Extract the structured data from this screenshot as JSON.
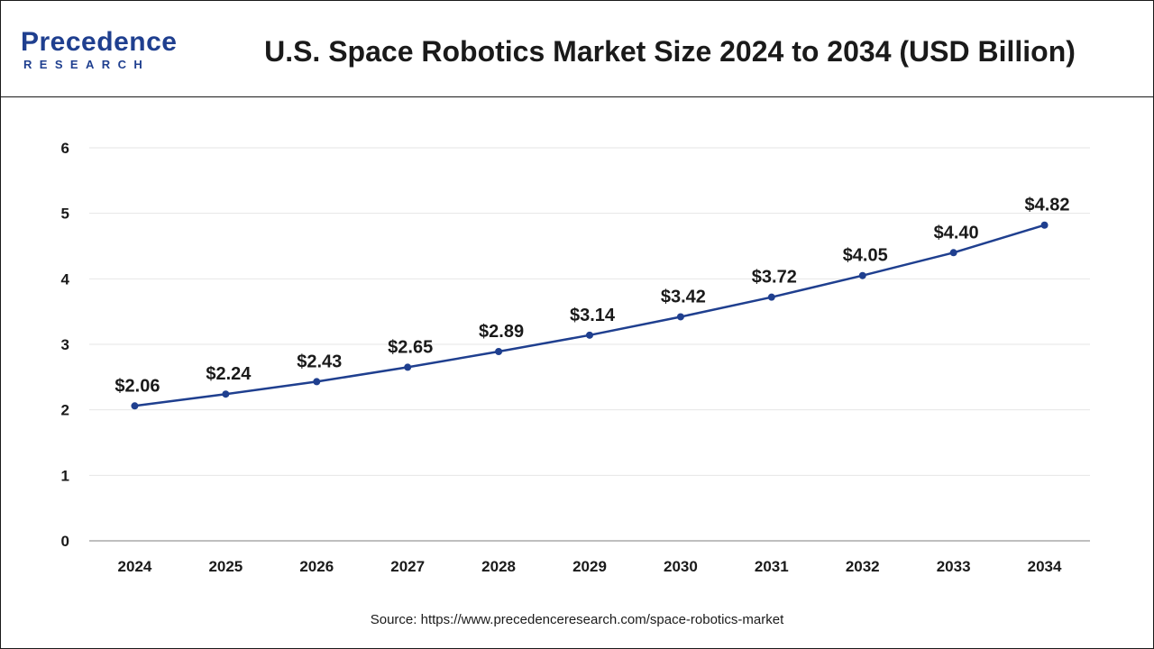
{
  "header": {
    "logo_word": "Precedence",
    "logo_sub": "RESEARCH"
  },
  "colors": {
    "line": "#1f3f8f",
    "brand": "#1f3f8f",
    "grid": "#e6e6e6",
    "axis": "#999999",
    "text": "#1a1a1a"
  },
  "chart_data": {
    "type": "line",
    "title": "U.S. Space Robotics Market Size 2024 to 2034 (USD Billion)",
    "categories": [
      "2024",
      "2025",
      "2026",
      "2027",
      "2028",
      "2029",
      "2030",
      "2031",
      "2032",
      "2033",
      "2034"
    ],
    "values": [
      2.06,
      2.24,
      2.43,
      2.65,
      2.89,
      3.14,
      3.42,
      3.72,
      4.05,
      4.4,
      4.82
    ],
    "data_labels": [
      "$2.06",
      "$2.24",
      "$2.43",
      "$2.65",
      "$2.89",
      "$3.14",
      "$3.42",
      "$3.72",
      "$4.05",
      "$4.40",
      "$4.82"
    ],
    "ylim": [
      0,
      6
    ],
    "yticks": [
      "0",
      "1",
      "2",
      "3",
      "4",
      "5",
      "6"
    ],
    "xlabel": "",
    "ylabel": "",
    "grid": true,
    "legend": "none"
  },
  "source": "Source: https://www.precedenceresearch.com/space-robotics-market"
}
